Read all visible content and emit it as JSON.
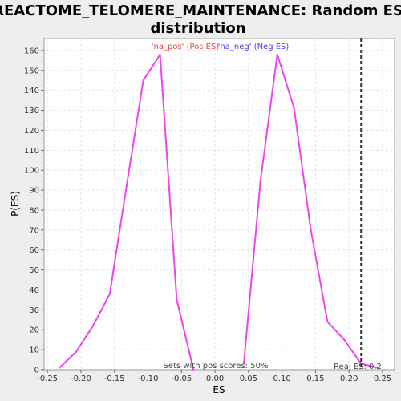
{
  "chart_data": {
    "type": "line",
    "title": "REACTOME_TELOMERE_MAINTENANCE: Random ES distribution",
    "title_lines": [
      "REACTOME_TELOMERE_MAINTENANCE: Random ES",
      "distribution"
    ],
    "xlabel": "ES",
    "ylabel": "P(ES)",
    "xlim": [
      -0.255,
      0.268
    ],
    "ylim": [
      0,
      166
    ],
    "x_ticks": [
      -0.25,
      -0.2,
      -0.15,
      -0.1,
      -0.05,
      0.0,
      0.05,
      0.1,
      0.15,
      0.2,
      0.25
    ],
    "x_tick_labels": [
      "-0.25",
      "-0.20",
      "-0.15",
      "-0.10",
      "-0.05",
      "0.00",
      "0.05",
      "0.10",
      "0.15",
      "0.20",
      "0.25"
    ],
    "y_ticks": [
      0,
      10,
      20,
      30,
      40,
      50,
      60,
      70,
      80,
      90,
      100,
      110,
      120,
      130,
      140,
      150,
      160
    ],
    "grid": true,
    "legend_position": "top-center",
    "series": [
      {
        "name": "'na_pos' (Pos ES)",
        "color": "#ee4444",
        "x": [
          -0.232,
          -0.207,
          -0.182,
          -0.157,
          -0.132,
          -0.107,
          -0.082,
          -0.057,
          -0.032
        ],
        "y": [
          1,
          9,
          22,
          38,
          92,
          145,
          158,
          35,
          0
        ]
      },
      {
        "name": "'na_neg' (Neg ES)",
        "color": "#4444ee",
        "x": [
          0.043,
          0.068,
          0.093,
          0.118,
          0.143,
          0.168,
          0.193,
          0.218,
          0.243
        ],
        "y": [
          3,
          95,
          158,
          131,
          70,
          24,
          15,
          3,
          1
        ]
      }
    ],
    "line_color": "#ee44ee",
    "real_es": {
      "x": 0.218,
      "label": "Real ES: 0.2"
    },
    "annotation": "Sets with pos scores: 50%"
  }
}
